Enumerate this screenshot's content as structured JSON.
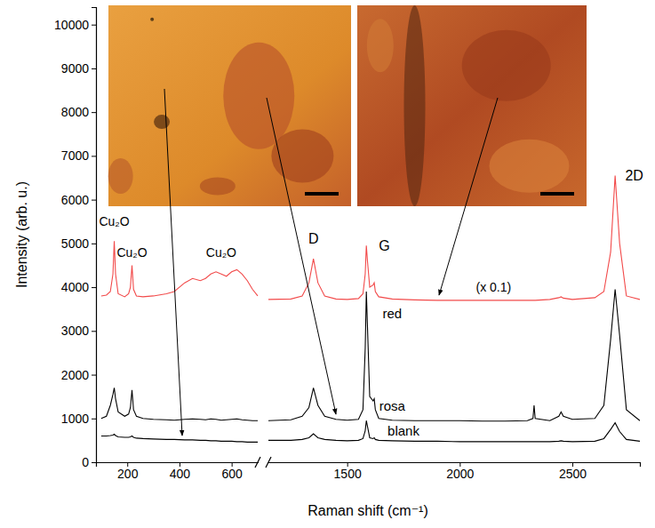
{
  "chart_data": {
    "type": "line",
    "x_label": "Raman shift (cm⁻¹)",
    "y_label": "Intensity (arb. u.)",
    "xlim": [
      80,
      2800
    ],
    "x_break": [
      700,
      1150
    ],
    "xticks": [
      200,
      400,
      600,
      1500,
      2000,
      2500
    ],
    "ylim": [
      0,
      10400
    ],
    "yticks": [
      0,
      1000,
      2000,
      3000,
      4000,
      5000,
      6000,
      7000,
      8000,
      9000,
      10000
    ],
    "x": [
      100,
      120,
      135,
      145,
      150,
      155,
      165,
      190,
      205,
      212,
      218,
      224,
      235,
      260,
      300,
      350,
      380,
      420,
      450,
      480,
      500,
      520,
      540,
      560,
      580,
      600,
      620,
      640,
      660,
      680,
      700,
      null,
      1150,
      1250,
      1300,
      1330,
      1350,
      1370,
      1400,
      1450,
      1500,
      1550,
      1570,
      1580,
      1585,
      1590,
      1600,
      1615,
      1620,
      1625,
      1640,
      1700,
      1800,
      1900,
      2000,
      2100,
      2200,
      2300,
      2325,
      2330,
      2335,
      2400,
      2440,
      2450,
      2460,
      2500,
      2600,
      2640,
      2670,
      2690,
      2710,
      2740,
      2800
    ],
    "series": [
      {
        "name": "red",
        "color": "#f24a4a",
        "label_x": 1700,
        "label_y": 3400,
        "values": [
          3800,
          3820,
          3900,
          4300,
          5050,
          4300,
          3850,
          3780,
          3850,
          4000,
          4500,
          3950,
          3800,
          3780,
          3800,
          3850,
          3900,
          4100,
          4200,
          4150,
          4200,
          4300,
          4350,
          4300,
          4250,
          4350,
          4400,
          4300,
          4150,
          3950,
          3800,
          null,
          3720,
          3730,
          3800,
          4100,
          4650,
          4100,
          3800,
          3730,
          3720,
          3740,
          3850,
          4300,
          4950,
          4600,
          4000,
          4050,
          4100,
          3900,
          3780,
          3730,
          3710,
          3700,
          3700,
          3700,
          3700,
          3700,
          3700,
          3700,
          3700,
          3720,
          3760,
          3780,
          3750,
          3720,
          3760,
          3900,
          4800,
          6550,
          5000,
          3800,
          3720
        ]
      },
      {
        "name": "rosa",
        "color": "#000000",
        "label_x": 1700,
        "label_y": 1300,
        "values": [
          1000,
          1050,
          1300,
          1550,
          1700,
          1450,
          1150,
          1050,
          1100,
          1250,
          1650,
          1200,
          1050,
          1000,
          980,
          970,
          960,
          980,
          990,
          980,
          970,
          990,
          980,
          960,
          970,
          980,
          990,
          970,
          960,
          950,
          950,
          null,
          950,
          970,
          1050,
          1250,
          1700,
          1300,
          1050,
          980,
          960,
          980,
          1200,
          2600,
          3900,
          3100,
          1500,
          1400,
          1450,
          1200,
          1000,
          960,
          950,
          950,
          950,
          940,
          940,
          950,
          1000,
          1300,
          1000,
          950,
          1050,
          1150,
          1050,
          980,
          1000,
          1300,
          2800,
          3950,
          2900,
          1200,
          950
        ]
      },
      {
        "name": "blank",
        "color": "#000000",
        "label_x": 1750,
        "label_y": 720,
        "values": [
          600,
          600,
          610,
          620,
          640,
          610,
          580,
          570,
          570,
          580,
          600,
          570,
          550,
          540,
          530,
          520,
          520,
          510,
          510,
          500,
          500,
          490,
          490,
          480,
          480,
          480,
          470,
          470,
          460,
          460,
          460,
          null,
          500,
          500,
          520,
          560,
          650,
          560,
          520,
          500,
          490,
          500,
          540,
          720,
          950,
          820,
          560,
          540,
          560,
          520,
          500,
          490,
          480,
          480,
          470,
          470,
          470,
          470,
          470,
          470,
          470,
          470,
          480,
          490,
          480,
          470,
          480,
          540,
          750,
          900,
          700,
          520,
          480
        ]
      }
    ],
    "annotations": [
      {
        "text": "Cu₂O",
        "x": 150,
        "y": 5500
      },
      {
        "text": "Cu₂O",
        "x": 218,
        "y": 4800
      },
      {
        "text": "Cu₂O",
        "x": 560,
        "y": 4800
      },
      {
        "text": "D",
        "x": 1350,
        "y": 5100
      },
      {
        "text": "G",
        "x": 1665,
        "y": 4950
      },
      {
        "text": "2D",
        "x": 2775,
        "y": 6550
      },
      {
        "text": "(x 0.1)",
        "x": 2150,
        "y": 4000
      }
    ]
  }
}
